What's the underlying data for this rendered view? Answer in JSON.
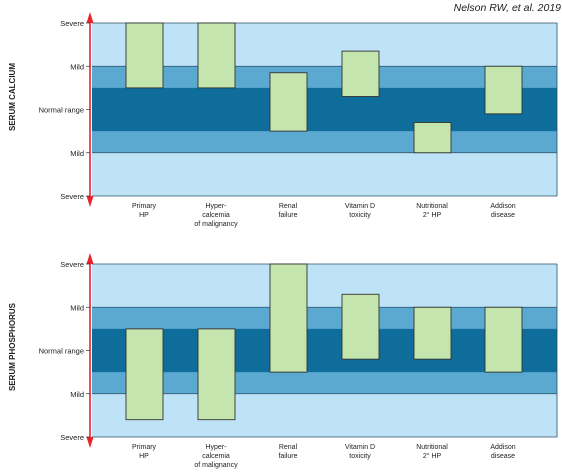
{
  "credit": "Nelson RW, et al. 2019",
  "colors": {
    "outer_band": "#bfe3f6",
    "mild_band": "#5ba8d0",
    "normal_band": "#0e6d9b",
    "bar_fill": "#c4e5ad",
    "bar_stroke": "#333333",
    "axis_arrow": "#e8232a"
  },
  "chart_data": [
    {
      "type": "bar",
      "subtype": "floating-range",
      "ylabel": "SERUM CALCIUM",
      "level_labels": [
        "Severe",
        "Mild",
        "Normal range",
        "Mild",
        "Severe"
      ],
      "level_scale_note": "y in level units: 2 = upper Severe, 1 = upper Mild, 0 = Normal range center, -1 = lower Mild, -2 = lower Severe",
      "ylim": [
        -2,
        2
      ],
      "categories": [
        [
          "Primary",
          "HP"
        ],
        [
          "Hyper-",
          "calcemia",
          "of malignancy"
        ],
        [
          "Renal",
          "failure"
        ],
        [
          "Vitamin D",
          "toxicity"
        ],
        [
          "Nutritional",
          "2° HP"
        ],
        [
          "Addison",
          "disease"
        ]
      ],
      "ranges": [
        [
          0.5,
          2.0
        ],
        [
          0.5,
          2.0
        ],
        [
          -0.5,
          0.85
        ],
        [
          0.3,
          1.35
        ],
        [
          -1.0,
          -0.3
        ],
        [
          -0.1,
          1.0
        ]
      ]
    },
    {
      "type": "bar",
      "subtype": "floating-range",
      "ylabel": "SERUM PHOSPHORUS",
      "level_labels": [
        "Severe",
        "Mild",
        "Normal range",
        "Mild",
        "Severe"
      ],
      "level_scale_note": "y in level units: 2 = upper Severe, 1 = upper Mild, 0 = Normal range center, -1 = lower Mild, -2 = lower Severe",
      "ylim": [
        -2,
        2
      ],
      "categories": [
        [
          "Primary",
          "HP"
        ],
        [
          "Hyper-",
          "calcemia",
          "of malignancy"
        ],
        [
          "Renal",
          "failure"
        ],
        [
          "Vitamin D",
          "toxicity"
        ],
        [
          "Nutritional",
          "2° HP"
        ],
        [
          "Addison",
          "disease"
        ]
      ],
      "ranges": [
        [
          -1.6,
          0.5
        ],
        [
          -1.6,
          0.5
        ],
        [
          -0.5,
          2.0
        ],
        [
          -0.2,
          1.3
        ],
        [
          -0.2,
          1.0
        ],
        [
          -0.5,
          1.0
        ]
      ]
    }
  ]
}
